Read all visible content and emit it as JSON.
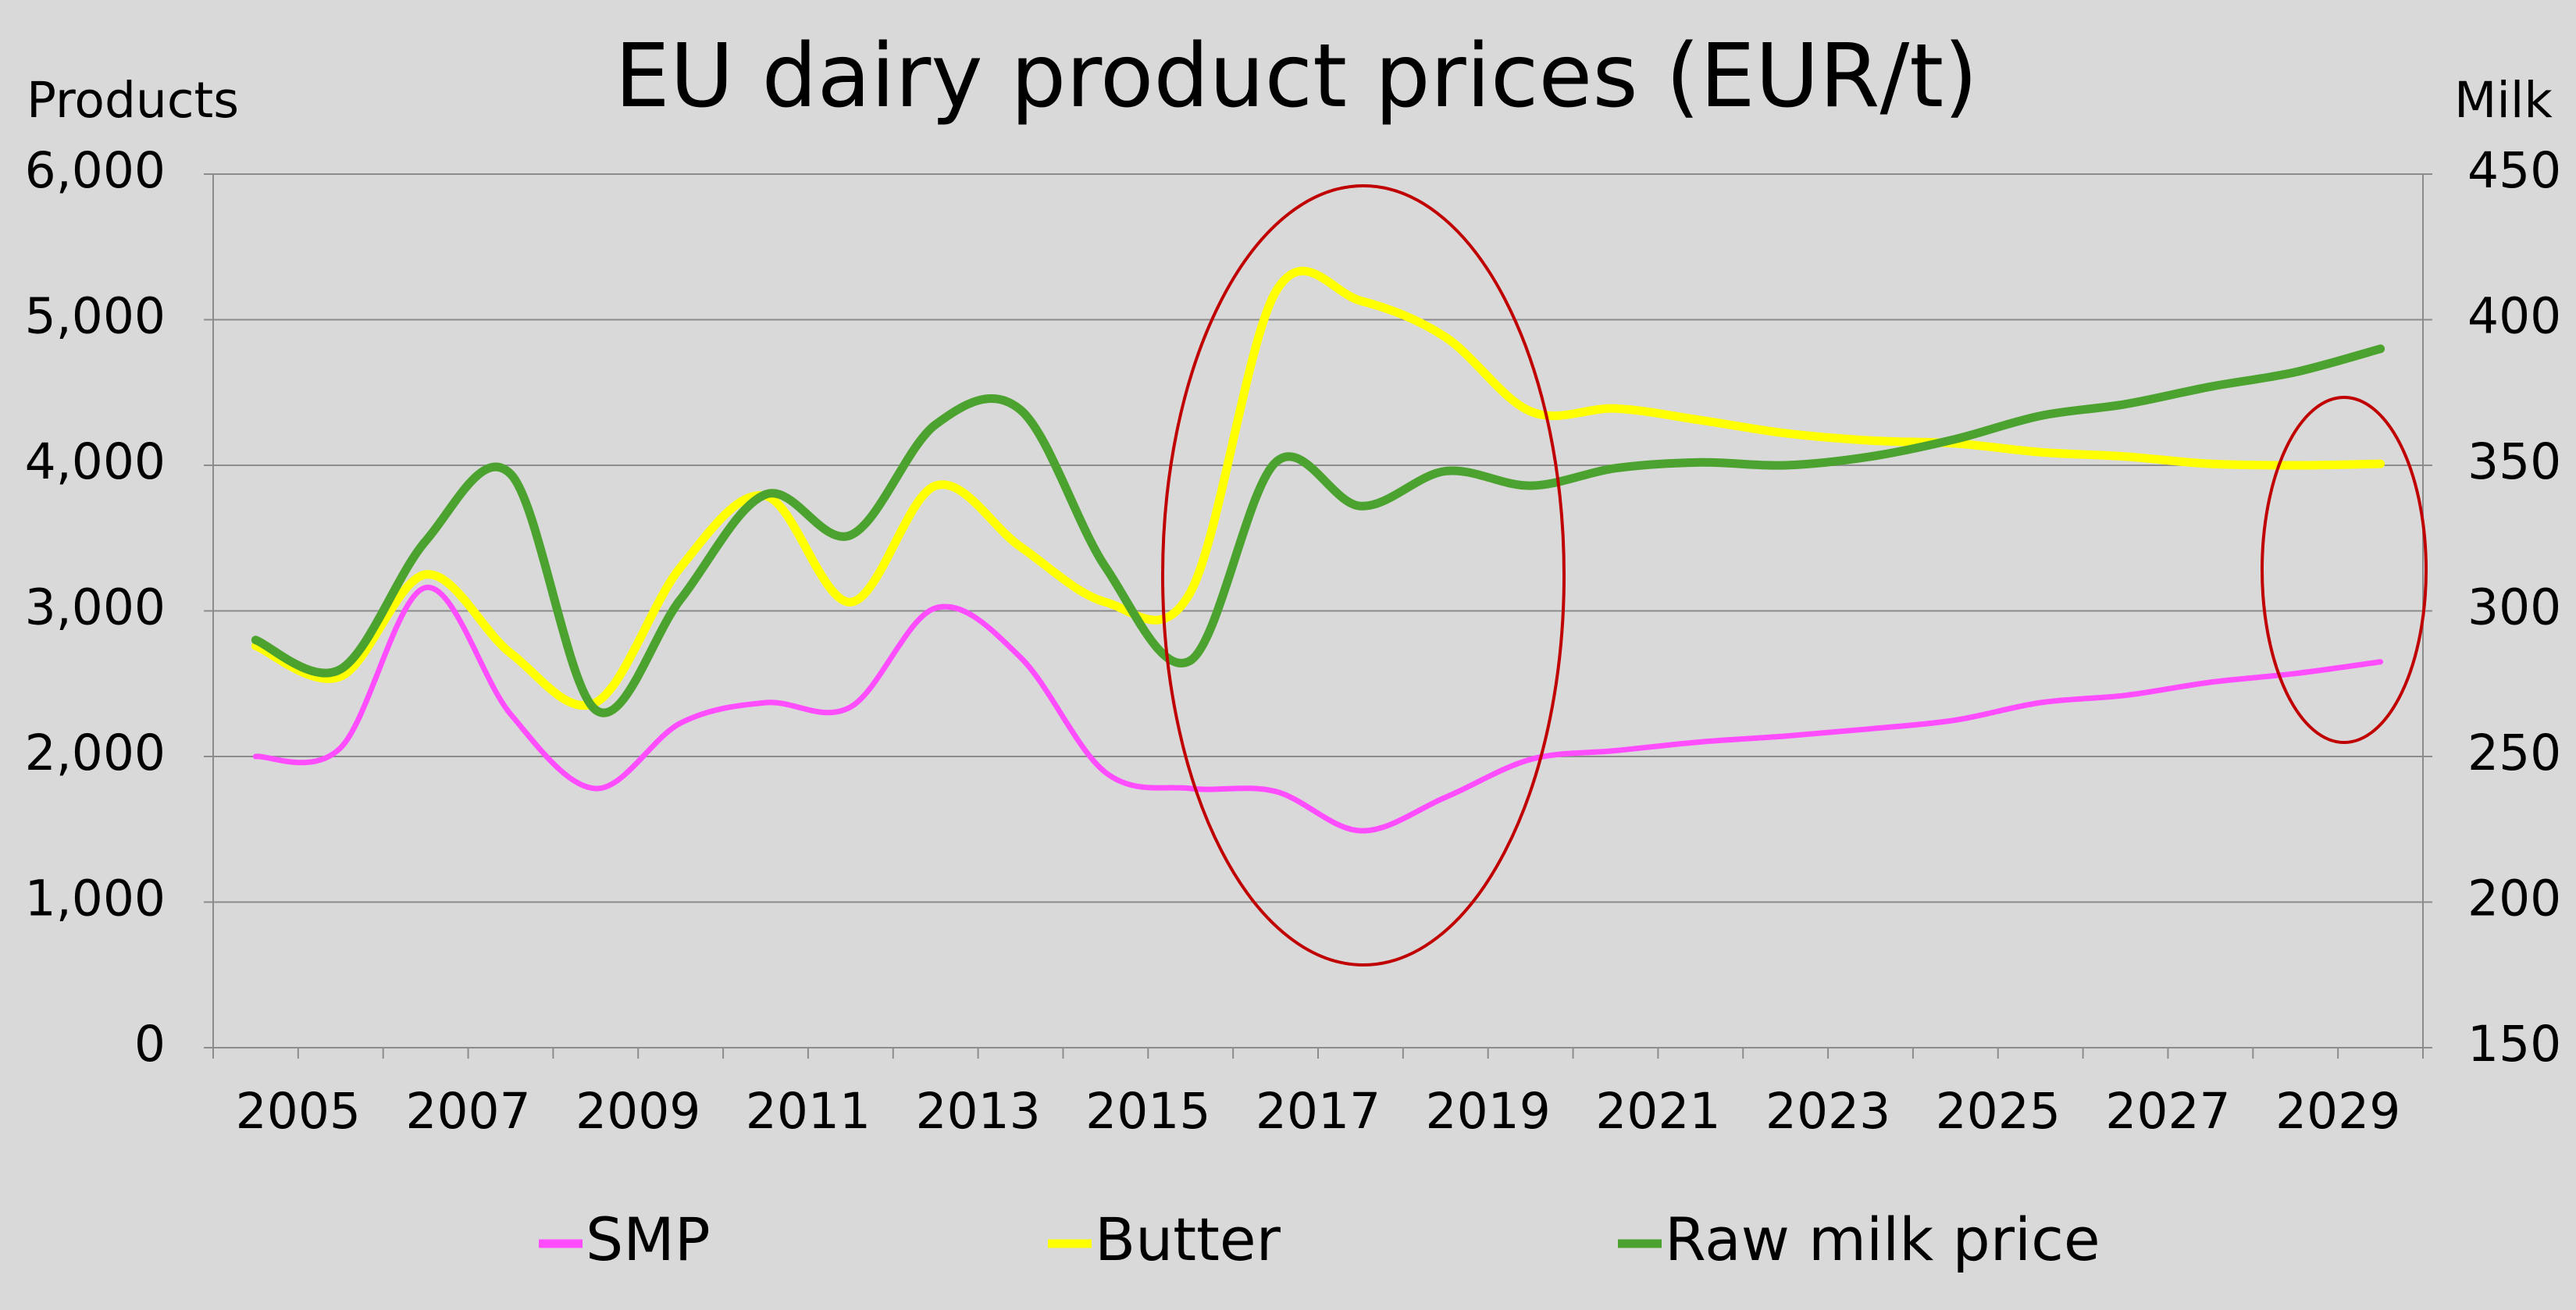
{
  "chart_data": {
    "type": "line",
    "title": "EU dairy product prices (EUR/t)",
    "y_axis_label": "Products",
    "y2_axis_label": "Milk",
    "categories": [
      "2005",
      null,
      "2007",
      null,
      "2009",
      null,
      "2011",
      null,
      "2013",
      null,
      "2015",
      null,
      "2017",
      null,
      "2019",
      null,
      "2021",
      null,
      "2023",
      null,
      "2025",
      null,
      "2027",
      null,
      "2029",
      null
    ],
    "series": [
      {
        "name": "SMP",
        "color": "#ff4dff",
        "axis": "y",
        "values": [
          2000,
          2060,
          3160,
          2290,
          1780,
          2230,
          2370,
          2340,
          3020,
          2680,
          1890,
          1780,
          1760,
          1490,
          1720,
          1980,
          2040,
          2100,
          2140,
          2190,
          2250,
          2370,
          2420,
          2510,
          2570,
          2650
        ]
      },
      {
        "name": "Butter",
        "color": "#ffff00",
        "axis": "y",
        "values": [
          2760,
          2550,
          3250,
          2710,
          2370,
          3300,
          3790,
          3060,
          3860,
          3440,
          3060,
          3130,
          5190,
          5130,
          4880,
          4370,
          4390,
          4310,
          4220,
          4170,
          4150,
          4090,
          4060,
          4010,
          4000,
          4010
        ]
      },
      {
        "name": "Raw milk price",
        "color": "#4ca22e",
        "axis": "y2",
        "values": [
          290,
          280,
          324,
          347,
          266,
          304,
          340,
          326,
          364,
          369,
          315,
          283,
          351,
          336,
          348,
          343,
          349,
          351,
          350,
          353,
          359,
          367,
          371,
          377,
          382,
          390
        ]
      }
    ],
    "ylim": [
      0,
      6000
    ],
    "yticks": [
      0,
      {
        "value": 1000,
        "label": "1,000"
      },
      {
        "value": 2000,
        "label": "2,000"
      },
      {
        "value": 3000,
        "label": "3,000"
      },
      {
        "value": 4000,
        "label": "4,000"
      },
      {
        "value": 5000,
        "label": "5,000"
      },
      {
        "value": 6000,
        "label": "6,000"
      }
    ],
    "y2lim": [
      150,
      450
    ],
    "y2ticks": [
      150,
      200,
      250,
      300,
      350,
      400,
      450
    ],
    "grid": true,
    "legend": "bottom"
  }
}
